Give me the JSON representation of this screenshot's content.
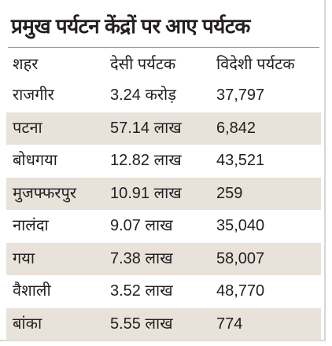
{
  "table": {
    "title": "प्रमुख पर्यटन केंद्रों पर आए पर्यटक",
    "header": [
      "शहर",
      "देसी पर्यटक",
      "विदेशी पर्यटक"
    ],
    "rows": [
      [
        "राजगीर",
        "3.24 करोड़",
        "37,797"
      ],
      [
        "पटना",
        "57.14 लाख",
        "6,842"
      ],
      [
        "बोधगया",
        "12.82 लाख",
        "43,521"
      ],
      [
        "मुजफ्फरपुर",
        "10.91 लाख",
        "259"
      ],
      [
        "नालंदा",
        "9.07 लाख",
        "35,040"
      ],
      [
        "गया",
        "7.38 लाख",
        "58,007"
      ],
      [
        "वैशाली",
        "3.52 लाख",
        "48,770"
      ],
      [
        "बांका",
        "5.55 लाख",
        "774"
      ]
    ]
  }
}
